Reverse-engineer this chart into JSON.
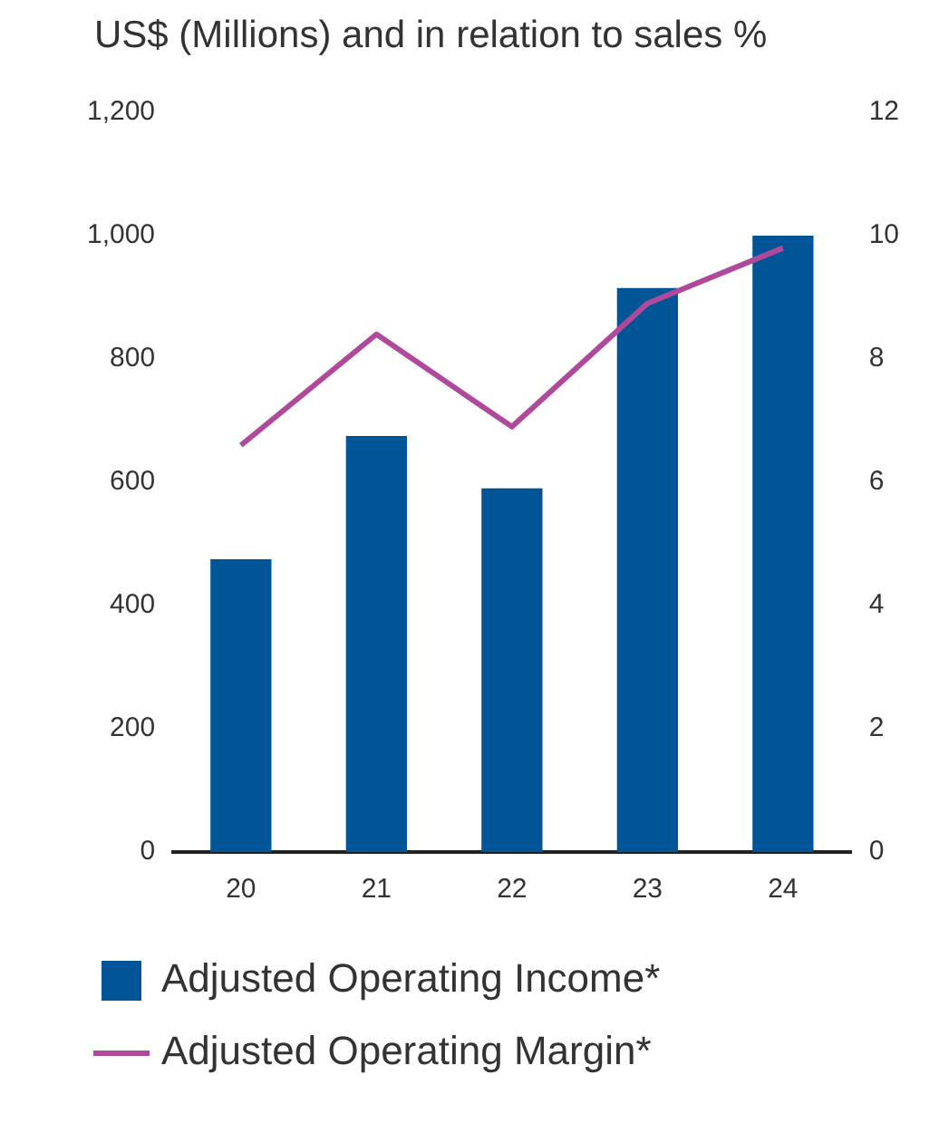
{
  "chart_data": {
    "type": "bar",
    "title": "US$ (Millions) and in relation to sales %",
    "categories": [
      "20",
      "21",
      "22",
      "23",
      "24"
    ],
    "series": [
      {
        "name": "Adjusted Operating Income*",
        "color": "#005596",
        "values": [
          475,
          675,
          590,
          915,
          1000
        ]
      },
      {
        "name": "Adjusted Operating Margin*",
        "type": "line",
        "axis": "y2",
        "color": "#b0499a",
        "values": [
          6.6,
          8.4,
          6.9,
          8.9,
          9.8
        ]
      }
    ],
    "ylim": [
      0,
      1200
    ],
    "yticks": [
      0,
      200,
      400,
      600,
      800,
      {
        "value": 1000,
        "label": "1,000"
      },
      {
        "value": 1200,
        "label": "1,200"
      }
    ],
    "y2lim": [
      0,
      12
    ],
    "y2ticks": [
      0,
      2,
      4,
      6,
      8,
      10,
      12
    ],
    "grid": false,
    "legend": "bottom",
    "marker": "none",
    "line_style": "solid"
  }
}
